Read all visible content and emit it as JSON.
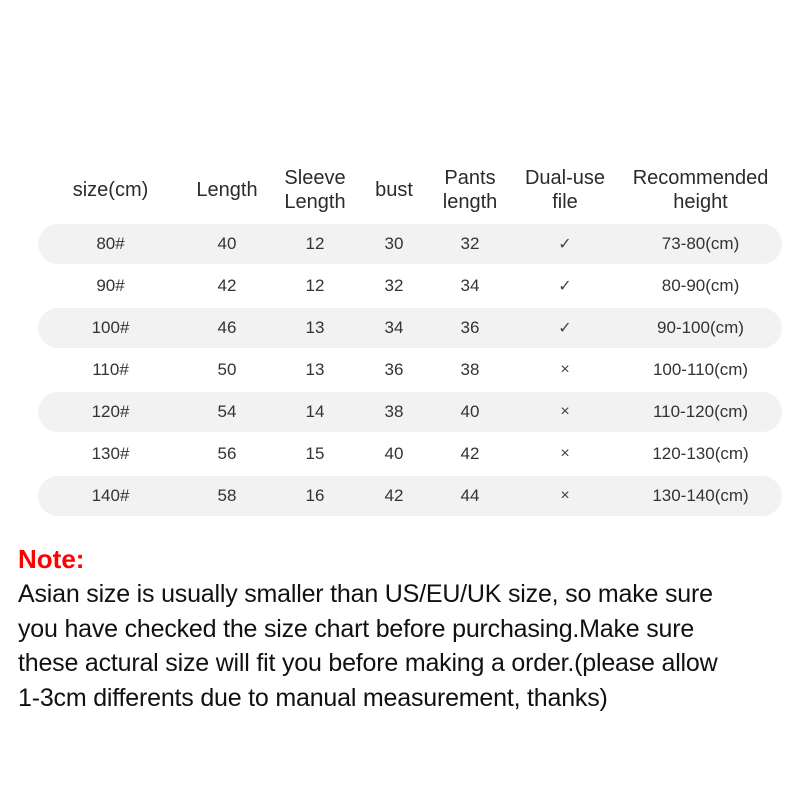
{
  "colors": {
    "background": "#ffffff",
    "row_stripe": "#f2f2f2",
    "table_text": "#333333",
    "header_text": "#2b2b2b",
    "note_accent_red": "#ff0000",
    "note_text": "#111111"
  },
  "table": {
    "columns": [
      {
        "label": "size(cm)"
      },
      {
        "label": "Length"
      },
      {
        "label": "Sleeve Length"
      },
      {
        "label": "bust"
      },
      {
        "label": "Pants length"
      },
      {
        "label": "Dual-use file"
      },
      {
        "label": "Recommended height"
      }
    ],
    "rows": [
      {
        "size": "80#",
        "length": "40",
        "sleeve": "12",
        "bust": "30",
        "pants": "32",
        "dual": "✓",
        "height": "73-80(cm)"
      },
      {
        "size": "90#",
        "length": "42",
        "sleeve": "12",
        "bust": "32",
        "pants": "34",
        "dual": "✓",
        "height": "80-90(cm)"
      },
      {
        "size": "100#",
        "length": "46",
        "sleeve": "13",
        "bust": "34",
        "pants": "36",
        "dual": "✓",
        "height": "90-100(cm)"
      },
      {
        "size": "110#",
        "length": "50",
        "sleeve": "13",
        "bust": "36",
        "pants": "38",
        "dual": "×",
        "height": "100-110(cm)"
      },
      {
        "size": "120#",
        "length": "54",
        "sleeve": "14",
        "bust": "38",
        "pants": "40",
        "dual": "×",
        "height": "110-120(cm)"
      },
      {
        "size": "130#",
        "length": "56",
        "sleeve": "15",
        "bust": "40",
        "pants": "42",
        "dual": "×",
        "height": "120-130(cm)"
      },
      {
        "size": "140#",
        "length": "58",
        "sleeve": "16",
        "bust": "42",
        "pants": "44",
        "dual": "×",
        "height": "130-140(cm)"
      }
    ]
  },
  "note": {
    "title": "Note:",
    "lines": [
      "Asian size is usually smaller than US/EU/UK size, so make sure",
      "you have checked the size chart before purchasing.Make sure",
      "these actural size will fit you before making a order.(please allow",
      "1-3cm differents due to manual measurement, thanks)"
    ]
  }
}
